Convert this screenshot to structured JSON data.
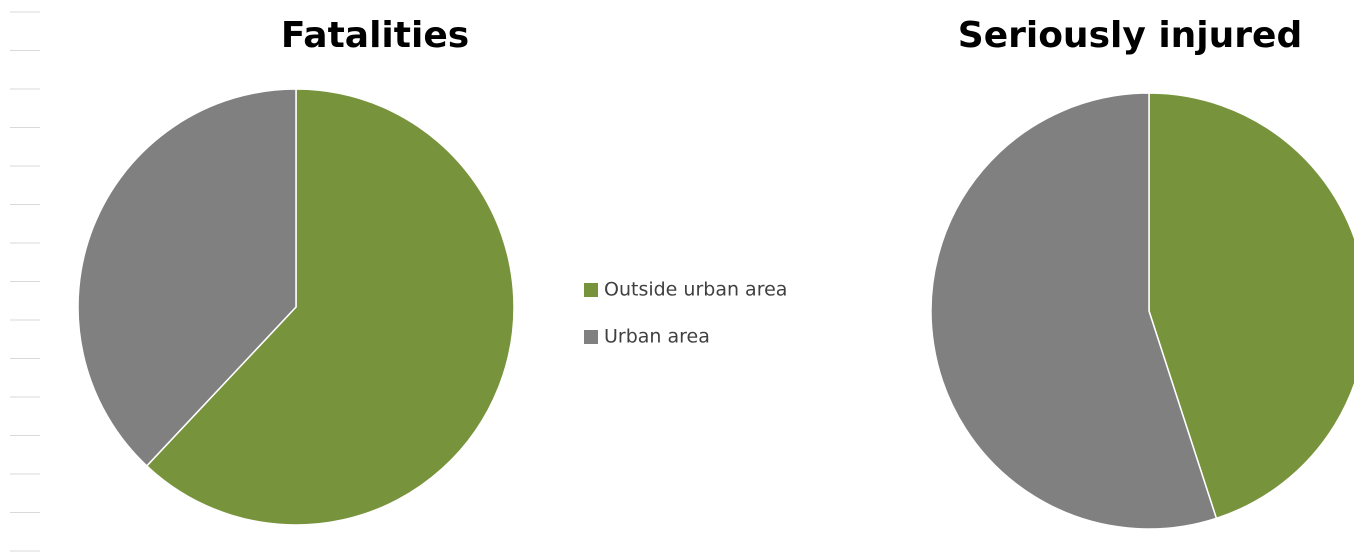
{
  "chart_data": [
    {
      "type": "pie",
      "title": "Fatalities",
      "categories": [
        "Outside urban area",
        "Urban area"
      ],
      "values": [
        62,
        38
      ],
      "colors": [
        "#77933c",
        "#808080"
      ],
      "legend": "right"
    },
    {
      "type": "pie",
      "title": "Seriously injured",
      "values": [
        45,
        55
      ],
      "colors": [
        "#77933c",
        "#808080"
      ]
    }
  ]
}
